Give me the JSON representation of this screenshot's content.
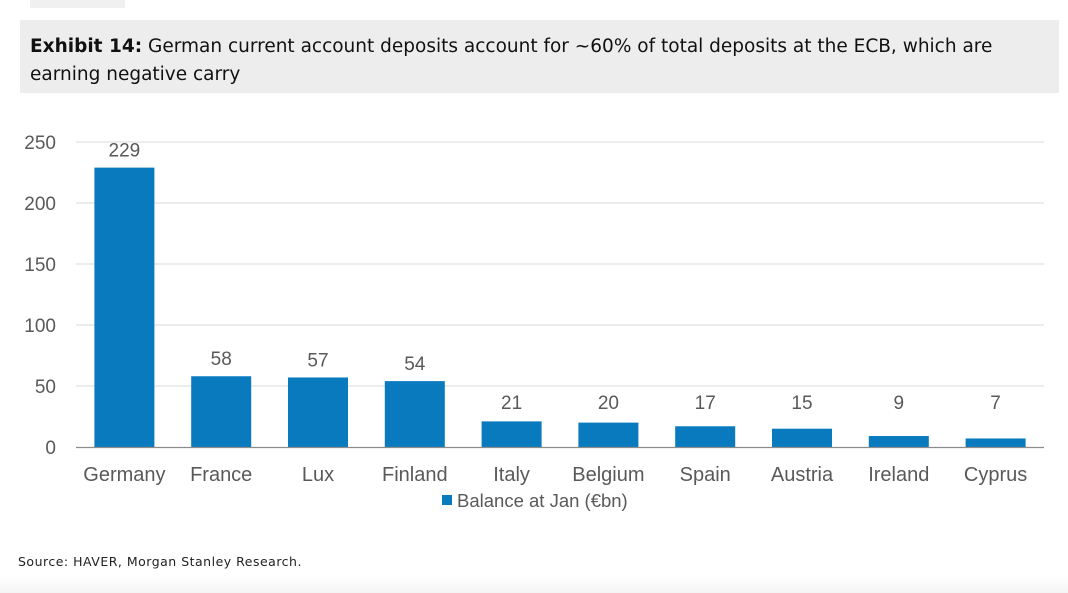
{
  "header": {
    "label": "Exhibit 14:",
    "title": "German current account deposits account for ~60% of total deposits at the ECB, which are earning negative carry"
  },
  "source": "Source: HAVER, Morgan Stanley Research.",
  "colors": {
    "bar": "#0a7abf",
    "grid": "#d9d9d9",
    "axis": "#8c8c8c",
    "text": "#595959",
    "header_bg": "#ededed"
  },
  "chart_data": {
    "type": "bar",
    "categories": [
      "Germany",
      "France",
      "Lux",
      "Finland",
      "Italy",
      "Belgium",
      "Spain",
      "Austria",
      "Ireland",
      "Cyprus"
    ],
    "series": [
      {
        "name": "Balance at Jan (€bn)",
        "values": [
          229,
          58,
          57,
          54,
          21,
          20,
          17,
          15,
          9,
          7
        ]
      }
    ],
    "data_labels": [
      "229",
      "58",
      "57",
      "54",
      "21",
      "20",
      "17",
      "15",
      "9",
      "7"
    ],
    "yticks": [
      0,
      50,
      100,
      150,
      200,
      250
    ],
    "ylim": [
      0,
      250
    ],
    "grid": true,
    "legend_position": "bottom-center"
  }
}
